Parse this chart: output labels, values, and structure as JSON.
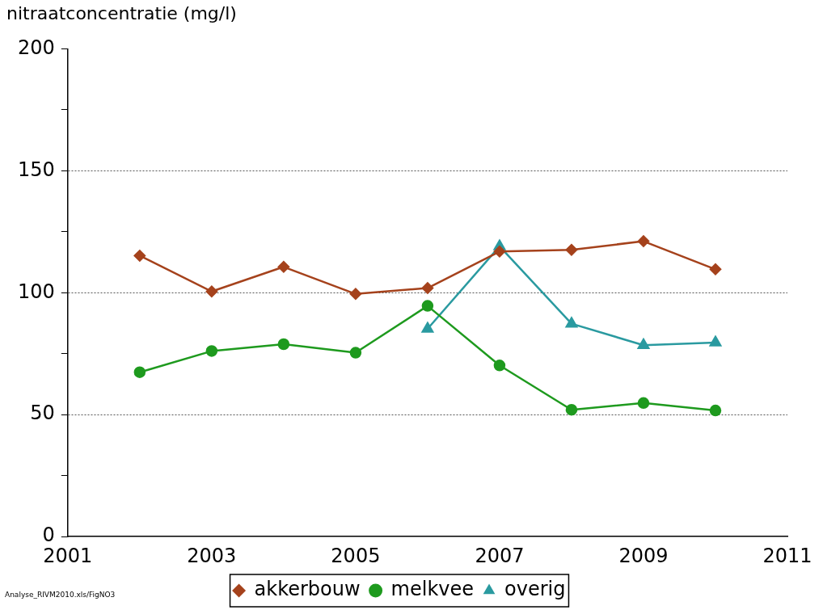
{
  "chart_data": {
    "type": "line",
    "ylabel": "nitraatconcentratie (mg/l)",
    "x": [
      2002,
      2003,
      2004,
      2005,
      2006,
      2007,
      2008,
      2009,
      2010
    ],
    "series": [
      {
        "name": "akkerbouw",
        "color": "#a5421c",
        "marker": "diamond",
        "values": [
          115.2,
          100.5,
          110.6,
          99.5,
          101.9,
          116.9,
          117.6,
          121.1,
          109.6
        ]
      },
      {
        "name": "melkvee",
        "color": "#1e9a1e",
        "marker": "circle",
        "values": [
          67.4,
          76.1,
          78.9,
          75.4,
          94.6,
          70.2,
          52,
          54.8,
          51.7
        ]
      },
      {
        "name": "overig",
        "color": "#2a9aa0",
        "marker": "triangle",
        "x": [
          2006,
          2007,
          2008,
          2009,
          2010
        ],
        "values": [
          85.2,
          119,
          87.3,
          78.5,
          79.6
        ]
      }
    ],
    "xlim": [
      2001,
      2011
    ],
    "xticks": [
      2001,
      2003,
      2005,
      2007,
      2009,
      2011
    ],
    "ylim": [
      0,
      200
    ],
    "yticks": [
      0,
      {
        "value": 25,
        "label": null
      },
      50,
      {
        "value": 75,
        "label": null
      },
      100,
      {
        "value": 125,
        "label": null
      },
      150,
      {
        "value": 175,
        "label": null
      },
      200
    ],
    "grid": "y",
    "legend": "bottom",
    "line_style": "solid",
    "annotations": [
      "Analyse_RIVM2010.xls/FigNO3"
    ]
  }
}
